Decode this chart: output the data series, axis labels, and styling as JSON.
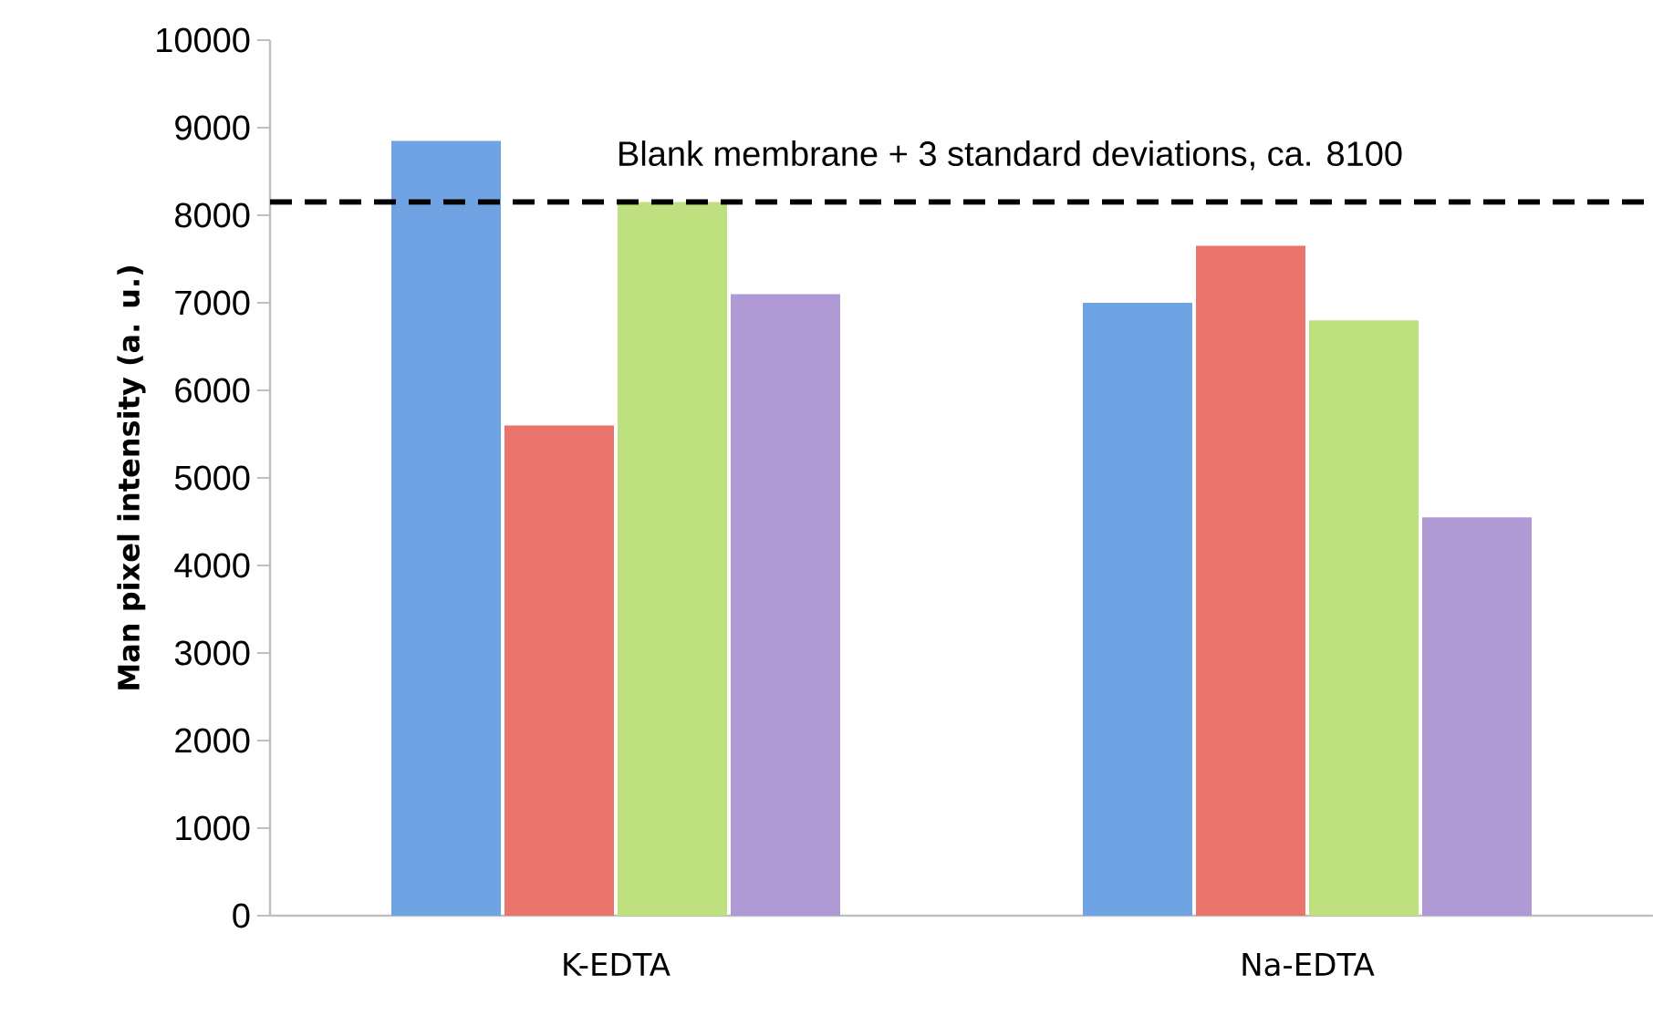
{
  "chart_data": {
    "type": "bar",
    "ylabel": "Man pixel intensity (a. u.)",
    "categories": [
      "K-EDTA",
      "Na-EDTA"
    ],
    "series": [
      {
        "color": "#6fa3e3",
        "values": [
          8850,
          7000
        ]
      },
      {
        "color": "#e9746c",
        "values": [
          5600,
          7650
        ]
      },
      {
        "color": "#bfe07e",
        "values": [
          8150,
          6800
        ]
      },
      {
        "color": "#b09ad6",
        "values": [
          7100,
          4550
        ]
      }
    ],
    "ylim": [
      0,
      10000
    ],
    "yticks": [
      0,
      1000,
      2000,
      3000,
      4000,
      5000,
      6000,
      7000,
      8000,
      9000,
      10000
    ],
    "ref_lines": [
      {
        "axis": "y",
        "value": 8150,
        "label": "Blank membrane + 3 standard deviations, ca. 8100",
        "color": "#000000",
        "line_style": "dashed"
      }
    ],
    "line_style": "solid"
  }
}
